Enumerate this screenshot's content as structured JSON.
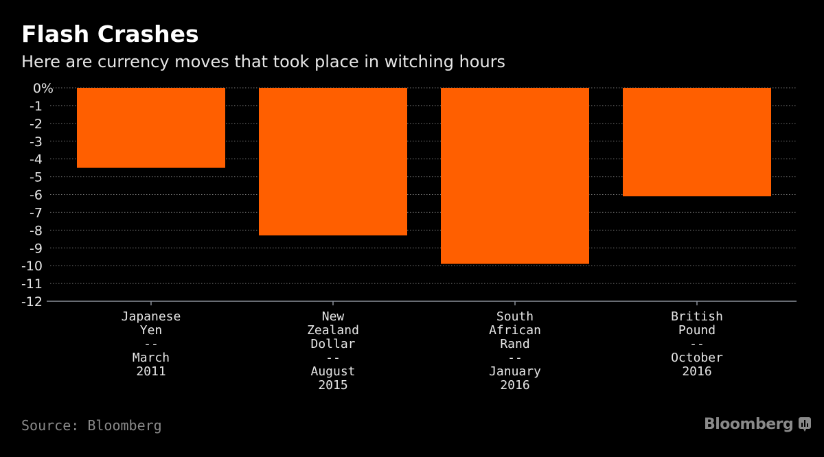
{
  "title": "Flash Crashes",
  "subtitle": "Here are currency moves that took place in witching hours",
  "source": "Source: Bloomberg",
  "brand": "Bloomberg",
  "colors": {
    "bar": "#ff5f00",
    "background": "#000000",
    "grid": "#666666",
    "text": "#e6e6e6"
  },
  "chart_data": {
    "type": "bar",
    "title": "Flash Crashes",
    "subtitle": "Here are currency moves that took place in witching hours",
    "xlabel": "",
    "ylabel": "",
    "ylim": [
      -12,
      0
    ],
    "yticks": [
      0,
      -1,
      -2,
      -3,
      -4,
      -5,
      -6,
      -7,
      -8,
      -9,
      -10,
      -11,
      -12
    ],
    "ytick_labels": [
      "0%",
      "-1",
      "-2",
      "-3",
      "-4",
      "-5",
      "-6",
      "-7",
      "-8",
      "-9",
      "-10",
      "-11",
      "-12"
    ],
    "grid": true,
    "categories": [
      [
        "Japanese",
        "Yen",
        "--",
        "March",
        "2011"
      ],
      [
        "New",
        "Zealand",
        "Dollar",
        "--",
        "August",
        "2015"
      ],
      [
        "South",
        "African",
        "Rand",
        "--",
        "January",
        "2016"
      ],
      [
        "British",
        "Pound",
        "--",
        "October",
        "2016"
      ]
    ],
    "values": [
      -4.5,
      -8.3,
      -9.9,
      -6.1
    ]
  }
}
